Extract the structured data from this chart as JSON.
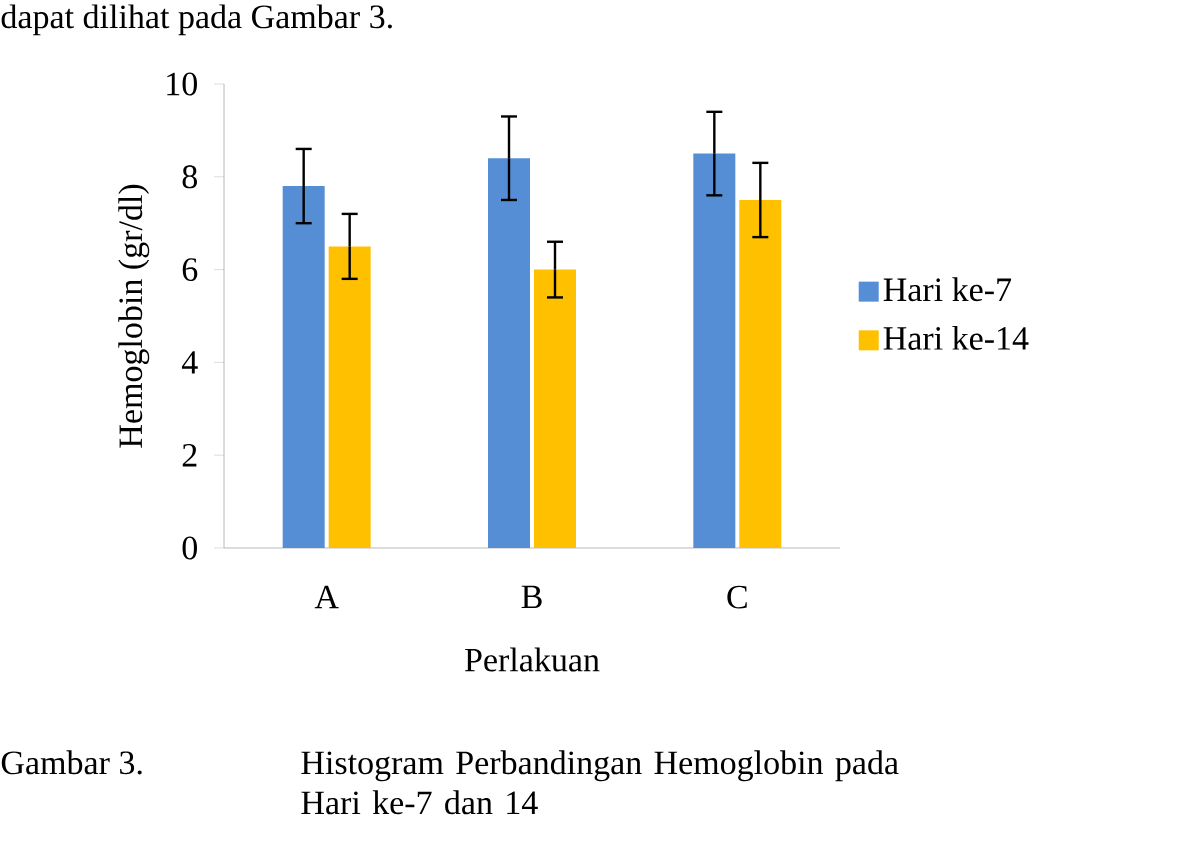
{
  "chart_data": {
    "type": "bar",
    "xlabel": "Perlakuan",
    "ylabel": "Hemoglobin (gr/dl)",
    "categories": [
      "A",
      "B",
      "C"
    ],
    "series": [
      {
        "name": "Hari ke-7",
        "color": "#558ed5",
        "values": [
          7.8,
          8.4,
          8.5
        ],
        "errors": [
          0.8,
          0.9,
          0.9
        ]
      },
      {
        "name": "Hari ke-14",
        "color": "#ffc000",
        "values": [
          6.5,
          6.0,
          7.5
        ],
        "errors": [
          0.7,
          0.6,
          0.8
        ]
      }
    ],
    "ylim": [
      0,
      10
    ],
    "yticks": [
      0,
      2,
      4,
      6,
      8,
      10
    ],
    "grid": false,
    "legend": "right",
    "annotations": [
      "dapat dilihat pada Gambar 3.",
      "Gambar 3.",
      "Histogram Perbandingan Hemoglobin pada Hari ke-7 dan 14"
    ]
  }
}
